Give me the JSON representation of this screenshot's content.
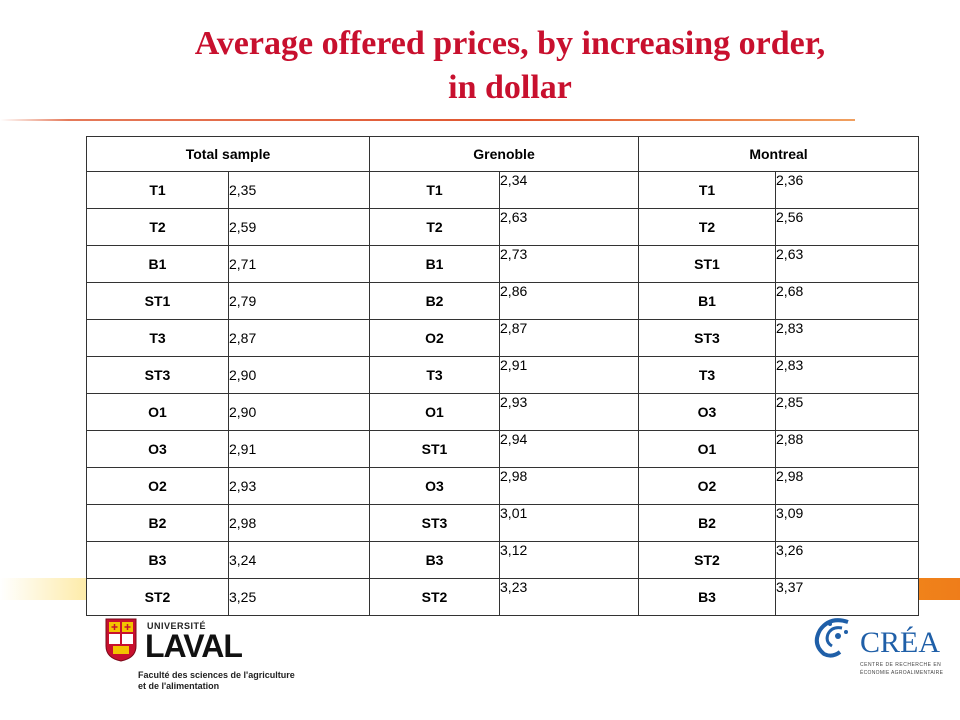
{
  "title": {
    "line1": "Average offered prices, by increasing order,",
    "line2": "in dollar"
  },
  "table": {
    "headers": [
      "Total sample",
      "Grenoble",
      "Montreal"
    ],
    "rows": [
      {
        "total": {
          "code": "T1",
          "value": "2,35"
        },
        "grenoble": {
          "code": "T1",
          "value": "2,34"
        },
        "montreal": {
          "code": "T1",
          "value": "2,36"
        }
      },
      {
        "total": {
          "code": "T2",
          "value": "2,59"
        },
        "grenoble": {
          "code": "T2",
          "value": "2,63"
        },
        "montreal": {
          "code": "T2",
          "value": "2,56"
        }
      },
      {
        "total": {
          "code": "B1",
          "value": "2,71"
        },
        "grenoble": {
          "code": "B1",
          "value": "2,73"
        },
        "montreal": {
          "code": "ST1",
          "value": "2,63"
        }
      },
      {
        "total": {
          "code": "ST1",
          "value": "2,79"
        },
        "grenoble": {
          "code": "B2",
          "value": "2,86"
        },
        "montreal": {
          "code": "B1",
          "value": "2,68"
        }
      },
      {
        "total": {
          "code": "T3",
          "value": "2,87"
        },
        "grenoble": {
          "code": "O2",
          "value": "2,87"
        },
        "montreal": {
          "code": "ST3",
          "value": "2,83"
        }
      },
      {
        "total": {
          "code": "ST3",
          "value": "2,90"
        },
        "grenoble": {
          "code": "T3",
          "value": "2,91"
        },
        "montreal": {
          "code": "T3",
          "value": "2,83"
        }
      },
      {
        "total": {
          "code": "O1",
          "value": "2,90"
        },
        "grenoble": {
          "code": "O1",
          "value": "2,93"
        },
        "montreal": {
          "code": "O3",
          "value": "2,85"
        }
      },
      {
        "total": {
          "code": "O3",
          "value": "2,91"
        },
        "grenoble": {
          "code": "ST1",
          "value": "2,94"
        },
        "montreal": {
          "code": "O1",
          "value": "2,88"
        }
      },
      {
        "total": {
          "code": "O2",
          "value": "2,93"
        },
        "grenoble": {
          "code": "O3",
          "value": "2,98"
        },
        "montreal": {
          "code": "O2",
          "value": "2,98"
        }
      },
      {
        "total": {
          "code": "B2",
          "value": "2,98"
        },
        "grenoble": {
          "code": "ST3",
          "value": "3,01"
        },
        "montreal": {
          "code": "B2",
          "value": "3,09"
        }
      },
      {
        "total": {
          "code": "B3",
          "value": "3,24"
        },
        "grenoble": {
          "code": "B3",
          "value": "3,12"
        },
        "montreal": {
          "code": "ST2",
          "value": "3,26"
        }
      },
      {
        "total": {
          "code": "ST2",
          "value": "3,25"
        },
        "grenoble": {
          "code": "ST2",
          "value": "3,23"
        },
        "montreal": {
          "code": "B3",
          "value": "3,37"
        }
      }
    ]
  },
  "logos": {
    "laval": {
      "university_label": "UNIVERSITÉ",
      "name": "LAVAL",
      "faculty_line1": "Faculté des sciences de l'agriculture",
      "faculty_line2": "et de l'alimentation"
    },
    "crea": {
      "name": "CRÉA",
      "subtitle_line1": "CENTRE DE RECHERCHE EN",
      "subtitle_line2": "ÉCONOMIE AGROALIMENTAIRE"
    }
  },
  "colors": {
    "title": "#c8102e",
    "accent_band": "#f3a61e",
    "crea_blue": "#1f5fa8",
    "laval_red": "#c8102e"
  }
}
